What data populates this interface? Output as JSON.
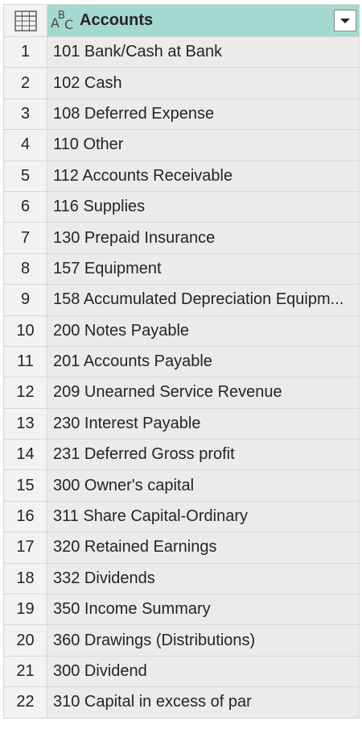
{
  "header": {
    "column_title": "Accounts",
    "type_icon": "abc-text-type-icon",
    "select_all_icon": "table-icon",
    "dropdown_icon": "chevron-down-icon"
  },
  "colors": {
    "header_accent": "#a3d9cf",
    "cell_bg": "#edebe9",
    "row_header_bg": "#f3f2f1"
  },
  "rows": [
    {
      "num": "1",
      "value": "101 Bank/Cash at Bank"
    },
    {
      "num": "2",
      "value": "102 Cash"
    },
    {
      "num": "3",
      "value": "108 Deferred Expense"
    },
    {
      "num": "4",
      "value": "110 Other"
    },
    {
      "num": "5",
      "value": "112 Accounts Receivable"
    },
    {
      "num": "6",
      "value": "116 Supplies"
    },
    {
      "num": "7",
      "value": "130 Prepaid Insurance"
    },
    {
      "num": "8",
      "value": "157 Equipment"
    },
    {
      "num": "9",
      "value": "158 Accumulated Depreciation Equipm..."
    },
    {
      "num": "10",
      "value": "200 Notes Payable"
    },
    {
      "num": "11",
      "value": "201 Accounts Payable"
    },
    {
      "num": "12",
      "value": "209 Unearned Service Revenue"
    },
    {
      "num": "13",
      "value": "230 Interest Payable"
    },
    {
      "num": "14",
      "value": "231 Deferred Gross profit"
    },
    {
      "num": "15",
      "value": "300 Owner's capital"
    },
    {
      "num": "16",
      "value": "311 Share Capital-Ordinary"
    },
    {
      "num": "17",
      "value": "320 Retained Earnings"
    },
    {
      "num": "18",
      "value": "332 Dividends"
    },
    {
      "num": "19",
      "value": "350 Income Summary"
    },
    {
      "num": "20",
      "value": "360 Drawings (Distributions)"
    },
    {
      "num": "21",
      "value": "300 Dividend"
    },
    {
      "num": "22",
      "value": "310 Capital in excess of par"
    }
  ]
}
